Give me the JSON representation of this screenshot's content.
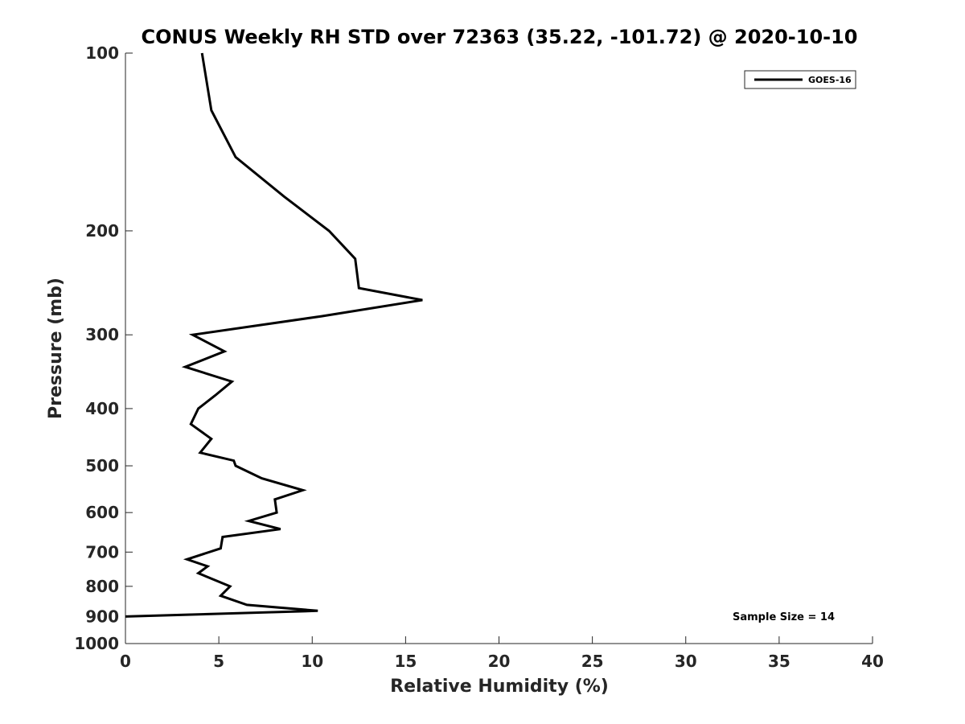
{
  "chart_data": {
    "type": "line",
    "title": "CONUS Weekly RH STD over 72363 (35.22, -101.72) @ 2020-10-10",
    "xlabel": "Relative Humidity (%)",
    "ylabel": "Pressure (mb)",
    "xlim": [
      0,
      40
    ],
    "ylim": [
      100,
      1000
    ],
    "y_scale": "log",
    "y_reversed": true,
    "x_ticks": [
      0,
      5,
      10,
      15,
      20,
      25,
      30,
      35,
      40
    ],
    "y_ticks": [
      100,
      200,
      300,
      400,
      500,
      600,
      700,
      800,
      900,
      1000
    ],
    "legend_position": "top-right",
    "annotation": "Sample Size = 14",
    "grid": false,
    "series": [
      {
        "name": "GOES-16",
        "color": "#000000",
        "points": [
          {
            "rh": 4.1,
            "p": 100
          },
          {
            "rh": 4.6,
            "p": 125
          },
          {
            "rh": 5.9,
            "p": 150
          },
          {
            "rh": 8.5,
            "p": 175
          },
          {
            "rh": 10.9,
            "p": 200
          },
          {
            "rh": 12.3,
            "p": 223
          },
          {
            "rh": 12.4,
            "p": 236
          },
          {
            "rh": 12.5,
            "p": 250
          },
          {
            "rh": 15.9,
            "p": 262
          },
          {
            "rh": 10.5,
            "p": 279
          },
          {
            "rh": 3.6,
            "p": 300
          },
          {
            "rh": 5.3,
            "p": 320
          },
          {
            "rh": 3.2,
            "p": 340
          },
          {
            "rh": 5.7,
            "p": 360
          },
          {
            "rh": 4.8,
            "p": 380
          },
          {
            "rh": 3.9,
            "p": 400
          },
          {
            "rh": 3.5,
            "p": 425
          },
          {
            "rh": 4.6,
            "p": 450
          },
          {
            "rh": 4.0,
            "p": 475
          },
          {
            "rh": 5.8,
            "p": 490
          },
          {
            "rh": 5.9,
            "p": 500
          },
          {
            "rh": 7.3,
            "p": 525
          },
          {
            "rh": 9.5,
            "p": 550
          },
          {
            "rh": 8.0,
            "p": 570
          },
          {
            "rh": 8.1,
            "p": 600
          },
          {
            "rh": 6.6,
            "p": 620
          },
          {
            "rh": 8.3,
            "p": 640
          },
          {
            "rh": 5.2,
            "p": 660
          },
          {
            "rh": 5.1,
            "p": 690
          },
          {
            "rh": 3.3,
            "p": 720
          },
          {
            "rh": 4.4,
            "p": 740
          },
          {
            "rh": 3.9,
            "p": 760
          },
          {
            "rh": 5.6,
            "p": 800
          },
          {
            "rh": 5.1,
            "p": 830
          },
          {
            "rh": 6.5,
            "p": 860
          },
          {
            "rh": 10.3,
            "p": 880
          },
          {
            "rh": 0.0,
            "p": 900
          }
        ]
      }
    ]
  }
}
